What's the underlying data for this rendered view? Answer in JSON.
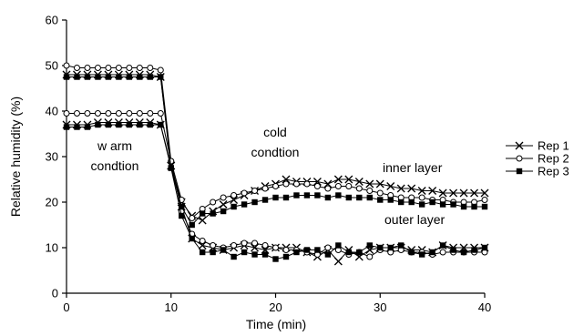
{
  "chart_data": {
    "type": "line",
    "title": "",
    "xlabel": "Time (min)",
    "ylabel": "Relative humidity (%)",
    "xlim": [
      0,
      40
    ],
    "ylim": [
      0,
      60
    ],
    "x_ticks": [
      0,
      10,
      20,
      30,
      40
    ],
    "y_ticks": [
      0,
      10,
      20,
      30,
      40,
      50,
      60
    ],
    "grid": false,
    "legend_position": "right",
    "annotations": {
      "warm": [
        "w arm",
        "condtion"
      ],
      "cold": [
        "cold",
        "condtion"
      ],
      "inner": "inner layer",
      "outer": "outer layer"
    },
    "x": [
      0,
      1,
      2,
      3,
      4,
      5,
      6,
      7,
      8,
      9,
      10,
      11,
      12,
      13,
      14,
      15,
      16,
      17,
      18,
      19,
      20,
      21,
      22,
      23,
      24,
      25,
      26,
      27,
      28,
      29,
      30,
      31,
      32,
      33,
      34,
      35,
      36,
      37,
      38,
      39,
      40
    ],
    "series": [
      {
        "name": "Rep 1",
        "marker": "x",
        "inner": [
          48,
          48,
          48,
          48,
          48,
          48,
          48,
          48,
          48,
          47.5,
          28,
          20,
          17,
          16,
          18,
          19.5,
          20.5,
          21.5,
          22.5,
          23.5,
          24,
          25,
          24.5,
          24.5,
          24.5,
          24,
          25,
          25,
          24.5,
          24,
          24,
          23.5,
          23,
          23,
          22.5,
          22.5,
          22,
          22,
          22,
          22,
          22
        ],
        "outer": [
          37,
          37,
          37,
          37.5,
          37.5,
          37.5,
          37.5,
          37.5,
          37.5,
          37,
          28,
          19,
          12,
          10.5,
          10,
          9.5,
          10,
          10.5,
          10,
          9.5,
          10,
          10,
          10,
          9,
          8,
          9.5,
          7,
          9.5,
          8,
          9.5,
          10,
          10,
          10,
          9.5,
          9.5,
          9,
          10.5,
          10,
          10,
          10,
          10
        ]
      },
      {
        "name": "Rep 2",
        "marker": "o",
        "inner": [
          50,
          49.5,
          49.5,
          49.5,
          49.5,
          49.5,
          49.5,
          49.5,
          49.5,
          49,
          29,
          20.5,
          16.5,
          18.5,
          20,
          21,
          21.5,
          22,
          22.5,
          23,
          23.5,
          24,
          24,
          24,
          23.5,
          23,
          23.5,
          23.5,
          23,
          22.5,
          22,
          21.5,
          21,
          21,
          21,
          20.5,
          20.5,
          20,
          20,
          20,
          20.5
        ],
        "outer": [
          39.5,
          39.5,
          39.5,
          39.5,
          39.5,
          39.5,
          39.5,
          39.5,
          39.5,
          39.5,
          29,
          18,
          13,
          11.5,
          10.5,
          10,
          10.5,
          11,
          11,
          10.5,
          10,
          9.5,
          9.5,
          9,
          8.5,
          10,
          9.5,
          8.5,
          9,
          8,
          9.5,
          9,
          9.5,
          9,
          9,
          8.5,
          9,
          9,
          9,
          9,
          9
        ]
      },
      {
        "name": "Rep 3",
        "marker": "s",
        "inner": [
          47.5,
          47.5,
          47.5,
          47.5,
          47.5,
          47.5,
          47.5,
          47.5,
          47.5,
          47.5,
          27.5,
          19,
          15,
          17.5,
          17.5,
          18,
          19,
          19.5,
          20,
          20.5,
          21,
          21,
          21.5,
          21.5,
          21.5,
          21,
          21.5,
          21,
          21,
          21,
          20.5,
          20.5,
          20,
          20,
          19.5,
          20,
          19.5,
          19.5,
          19,
          19,
          19
        ],
        "outer": [
          36.5,
          36.5,
          36.5,
          37,
          37,
          37,
          37,
          37,
          37,
          37,
          27.5,
          17,
          12,
          9,
          9,
          9.5,
          8,
          9,
          8.5,
          8.5,
          7.5,
          8,
          9,
          9.5,
          9.5,
          8.5,
          10.5,
          9,
          9,
          10.5,
          10,
          10,
          10.5,
          9,
          8.5,
          9,
          10.5,
          9.5,
          9,
          9.5,
          10
        ]
      }
    ]
  }
}
